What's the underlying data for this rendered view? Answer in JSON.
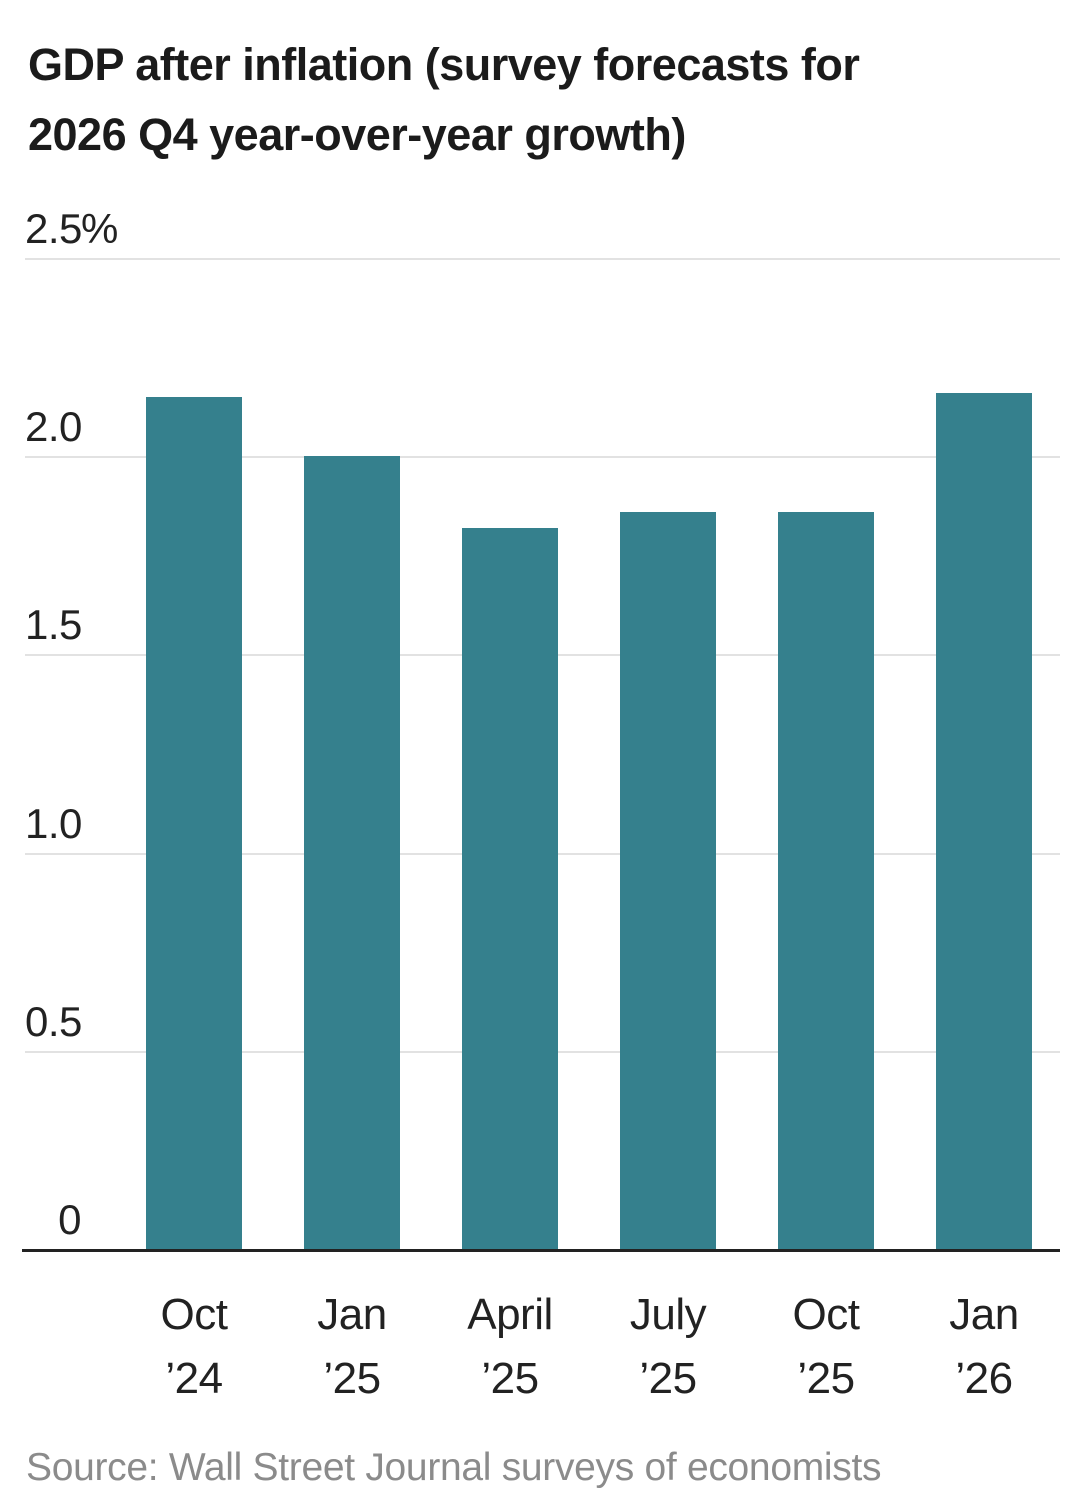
{
  "chart": {
    "title": "GDP after inflation (survey forecasts for\n2026 Q4 year-over-year growth)",
    "source": "Source: Wall Street Journal surveys of economists",
    "colors": {
      "bar": "#35808d",
      "gridline": "#e2e2e2",
      "baseline": "#222222",
      "title_text": "#1b1b1b",
      "tick_text": "#222222",
      "source_text": "#8b8b8b",
      "background": "#ffffff"
    },
    "y_axis": {
      "ticks": [
        {
          "value": 2.5,
          "num": "2.5",
          "suffix": "%"
        },
        {
          "value": 2.0,
          "num": "2.0",
          "suffix": ""
        },
        {
          "value": 1.5,
          "num": "1.5",
          "suffix": ""
        },
        {
          "value": 1.0,
          "num": "1.0",
          "suffix": ""
        },
        {
          "value": 0.5,
          "num": "0.5",
          "suffix": ""
        },
        {
          "value": 0,
          "num": "0",
          "suffix": ""
        }
      ]
    }
  },
  "chart_data": {
    "type": "bar",
    "title": "GDP after inflation (survey forecasts for 2026 Q4 year-over-year growth)",
    "categories": [
      "Oct ’24",
      "Jan ’25",
      "April ’25",
      "July ’25",
      "Oct ’25",
      "Jan ’26"
    ],
    "values": [
      2.15,
      2.0,
      1.82,
      1.86,
      1.86,
      2.16
    ],
    "xlabel": "",
    "ylabel": "",
    "unit": "%",
    "ylim": [
      0,
      2.5
    ],
    "y_tick_values": [
      0,
      0.5,
      1.0,
      1.5,
      2.0,
      2.5
    ],
    "grid": "horizontal",
    "legend": "none",
    "source": "Source: Wall Street Journal surveys of economists"
  }
}
